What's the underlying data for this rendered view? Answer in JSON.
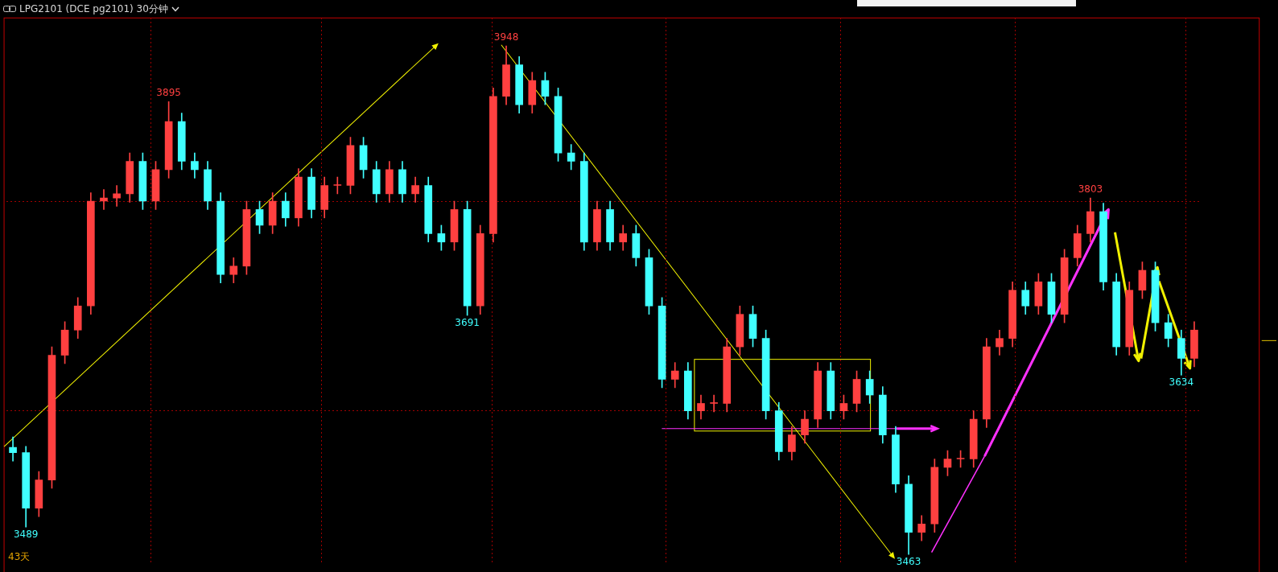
{
  "chart_data": {
    "type": "candlestick",
    "title": "LPG2101 (DCE pg2101) 30分钟",
    "categories": [
      null,
      null,
      null,
      null,
      null,
      null,
      null,
      null,
      null,
      null,
      null,
      null,
      null,
      null,
      null,
      null,
      null,
      null,
      null,
      null,
      null,
      null,
      null,
      null,
      null,
      null,
      null,
      null,
      null,
      null,
      null,
      null,
      null,
      null,
      null,
      null,
      null,
      null,
      null,
      null,
      null,
      null,
      null,
      null,
      null,
      null,
      null,
      null,
      null,
      null,
      null,
      null,
      null,
      null,
      null,
      null,
      null,
      null,
      null,
      null,
      null,
      null,
      null,
      null,
      null,
      null,
      null,
      null,
      null,
      null,
      null,
      null,
      null,
      null,
      null,
      null,
      null,
      null,
      null,
      null,
      null,
      null,
      null,
      null,
      null,
      null,
      null,
      null,
      null,
      null,
      null,
      null
    ],
    "ohlc": [
      [
        3565,
        3575,
        3552,
        3560
      ],
      [
        3560,
        3566,
        3489,
        3507
      ],
      [
        3507,
        3542,
        3499,
        3534
      ],
      [
        3534,
        3661,
        3526,
        3653
      ],
      [
        3653,
        3685,
        3645,
        3677
      ],
      [
        3677,
        3708,
        3669,
        3700
      ],
      [
        3700,
        3808,
        3692,
        3800
      ],
      [
        3800,
        3811,
        3792,
        3803
      ],
      [
        3803,
        3815,
        3795,
        3807
      ],
      [
        3807,
        3846,
        3799,
        3838
      ],
      [
        3838,
        3846,
        3792,
        3800
      ],
      [
        3800,
        3838,
        3792,
        3830
      ],
      [
        3830,
        3895,
        3822,
        3876
      ],
      [
        3876,
        3884,
        3830,
        3838
      ],
      [
        3838,
        3846,
        3822,
        3830
      ],
      [
        3830,
        3838,
        3792,
        3800
      ],
      [
        3800,
        3808,
        3722,
        3730
      ],
      [
        3730,
        3746,
        3722,
        3738
      ],
      [
        3738,
        3800,
        3730,
        3792
      ],
      [
        3792,
        3800,
        3769,
        3777
      ],
      [
        3777,
        3808,
        3769,
        3800
      ],
      [
        3800,
        3808,
        3776,
        3784
      ],
      [
        3784,
        3831,
        3776,
        3823
      ],
      [
        3823,
        3831,
        3784,
        3792
      ],
      [
        3792,
        3823,
        3784,
        3815
      ],
      [
        3815,
        3823,
        3807,
        3815
      ],
      [
        3815,
        3861,
        3807,
        3853
      ],
      [
        3853,
        3861,
        3822,
        3830
      ],
      [
        3830,
        3838,
        3799,
        3807
      ],
      [
        3807,
        3838,
        3799,
        3830
      ],
      [
        3830,
        3838,
        3799,
        3807
      ],
      [
        3807,
        3823,
        3799,
        3815
      ],
      [
        3815,
        3823,
        3761,
        3769
      ],
      [
        3769,
        3777,
        3753,
        3761
      ],
      [
        3761,
        3800,
        3753,
        3792
      ],
      [
        3792,
        3800,
        3691,
        3700
      ],
      [
        3700,
        3777,
        3692,
        3769
      ],
      [
        3769,
        3908,
        3761,
        3900
      ],
      [
        3900,
        3948,
        3892,
        3930
      ],
      [
        3930,
        3938,
        3884,
        3892
      ],
      [
        3892,
        3923,
        3884,
        3915
      ],
      [
        3915,
        3923,
        3892,
        3900
      ],
      [
        3900,
        3908,
        3838,
        3846
      ],
      [
        3846,
        3854,
        3830,
        3838
      ],
      [
        3838,
        3846,
        3753,
        3761
      ],
      [
        3761,
        3800,
        3753,
        3792
      ],
      [
        3792,
        3800,
        3753,
        3761
      ],
      [
        3761,
        3777,
        3753,
        3769
      ],
      [
        3769,
        3777,
        3738,
        3746
      ],
      [
        3746,
        3754,
        3692,
        3700
      ],
      [
        3700,
        3708,
        3622,
        3630
      ],
      [
        3630,
        3646,
        3622,
        3638
      ],
      [
        3638,
        3646,
        3592,
        3600
      ],
      [
        3600,
        3615,
        3592,
        3607
      ],
      [
        3607,
        3615,
        3599,
        3607
      ],
      [
        3607,
        3669,
        3599,
        3661
      ],
      [
        3661,
        3700,
        3653,
        3692
      ],
      [
        3692,
        3700,
        3661,
        3669
      ],
      [
        3669,
        3677,
        3592,
        3600
      ],
      [
        3600,
        3608,
        3553,
        3561
      ],
      [
        3561,
        3585,
        3553,
        3577
      ],
      [
        3577,
        3600,
        3569,
        3592
      ],
      [
        3592,
        3646,
        3584,
        3638
      ],
      [
        3638,
        3646,
        3592,
        3600
      ],
      [
        3600,
        3615,
        3592,
        3607
      ],
      [
        3607,
        3638,
        3599,
        3630
      ],
      [
        3630,
        3638,
        3607,
        3615
      ],
      [
        3615,
        3623,
        3569,
        3577
      ],
      [
        3577,
        3585,
        3522,
        3530
      ],
      [
        3530,
        3538,
        3463,
        3484
      ],
      [
        3484,
        3500,
        3476,
        3492
      ],
      [
        3492,
        3554,
        3484,
        3546
      ],
      [
        3546,
        3562,
        3538,
        3554
      ],
      [
        3554,
        3562,
        3546,
        3554
      ],
      [
        3554,
        3600,
        3546,
        3592
      ],
      [
        3592,
        3669,
        3584,
        3661
      ],
      [
        3661,
        3677,
        3653,
        3669
      ],
      [
        3669,
        3723,
        3661,
        3715
      ],
      [
        3715,
        3723,
        3692,
        3700
      ],
      [
        3700,
        3731,
        3692,
        3723
      ],
      [
        3723,
        3731,
        3684,
        3692
      ],
      [
        3692,
        3754,
        3684,
        3746
      ],
      [
        3746,
        3777,
        3738,
        3769
      ],
      [
        3769,
        3803,
        3761,
        3790
      ],
      [
        3790,
        3798,
        3715,
        3723
      ],
      [
        3723,
        3731,
        3653,
        3661
      ],
      [
        3661,
        3723,
        3653,
        3715
      ],
      [
        3715,
        3742,
        3707,
        3734
      ],
      [
        3734,
        3742,
        3676,
        3684
      ],
      [
        3684,
        3692,
        3661,
        3669
      ],
      [
        3669,
        3677,
        3634,
        3650
      ],
      [
        3650,
        3685,
        3642,
        3677
      ]
    ],
    "colors": [
      "#40ffff",
      "#40ffff",
      "#ff4040",
      "#ff4040",
      "#ff4040",
      "#ff4040",
      "#ff4040",
      "#ff4040",
      "#ff4040",
      "#ff4040",
      "#40ffff",
      "#ff4040",
      "#ff4040",
      "#40ffff",
      "#40ffff",
      "#40ffff",
      "#40ffff",
      "#ff4040",
      "#ff4040",
      "#40ffff",
      "#ff4040",
      "#40ffff",
      "#ff4040",
      "#40ffff",
      "#ff4040",
      "#ff4040",
      "#ff4040",
      "#40ffff",
      "#40ffff",
      "#ff4040",
      "#40ffff",
      "#ff4040",
      "#40ffff",
      "#40ffff",
      "#ff4040",
      "#40ffff",
      "#ff4040",
      "#ff4040",
      "#ff4040",
      "#40ffff",
      "#ff4040",
      "#40ffff",
      "#40ffff",
      "#40ffff",
      "#40ffff",
      "#ff4040",
      "#40ffff",
      "#ff4040",
      "#40ffff",
      "#40ffff",
      "#40ffff",
      "#ff4040",
      "#40ffff",
      "#ff4040",
      "#ff4040",
      "#ff4040",
      "#ff4040",
      "#40ffff",
      "#40ffff",
      "#40ffff",
      "#ff4040",
      "#ff4040",
      "#ff4040",
      "#40ffff",
      "#ff4040",
      "#ff4040",
      "#40ffff",
      "#40ffff",
      "#40ffff",
      "#40ffff",
      "#ff4040",
      "#ff4040",
      "#ff4040",
      "#ff4040",
      "#ff4040",
      "#ff4040",
      "#ff4040",
      "#ff4040",
      "#40ffff",
      "#ff4040",
      "#40ffff",
      "#ff4040",
      "#ff4040",
      "#ff4040",
      "#40ffff",
      "#40ffff",
      "#ff4040",
      "#ff4040",
      "#40ffff",
      "#40ffff",
      "#40ffff",
      "#ff4040"
    ],
    "ylim": [
      3454,
      3975
    ],
    "yticks": [
      {
        "value": 3600,
        "label": null
      },
      {
        "value": 3800,
        "label": null
      }
    ],
    "grid": "y",
    "annotations": [
      {
        "text": "3895",
        "y": 3895
      },
      {
        "text": "3948",
        "y": 3948
      },
      {
        "text": "3691",
        "y": 3691
      },
      {
        "text": "3489",
        "y": 3489
      },
      {
        "text": "3463",
        "y": 3463
      },
      {
        "text": "3803",
        "y": 3803
      },
      {
        "text": "3634",
        "y": 3634
      },
      "43天"
    ]
  }
}
